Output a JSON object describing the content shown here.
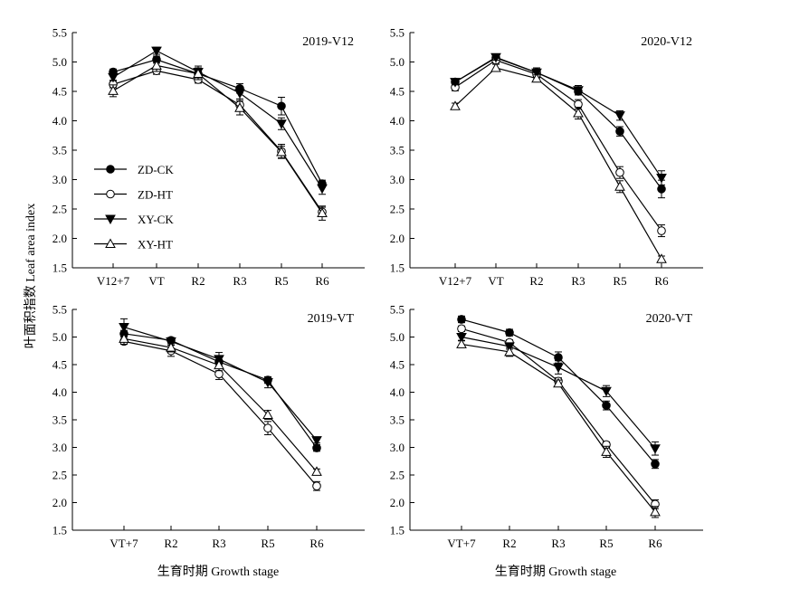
{
  "figure": {
    "ylabel": "叶面积指数 Leaf area index",
    "xlabel": "生育时期 Growth stage",
    "legend": [
      "ZD-CK",
      "ZD-HT",
      "XY-CK",
      "XY-HT"
    ]
  },
  "chart_data": [
    {
      "type": "line",
      "title": "2019-V12",
      "categories": [
        "V12+7",
        "VT",
        "R2",
        "R3",
        "R5",
        "R6"
      ],
      "ylim": [
        1.5,
        5.5
      ],
      "yticks": [
        "1.5",
        "2.0",
        "2.5",
        "3.0",
        "3.5",
        "4.0",
        "4.5",
        "5.0",
        "5.5"
      ],
      "series": [
        {
          "name": "ZD-CK",
          "values": [
            4.83,
            5.04,
            4.8,
            4.55,
            4.25,
            2.93
          ],
          "errors": [
            0.05,
            0.06,
            0.06,
            0.08,
            0.15,
            0.06
          ]
        },
        {
          "name": "ZD-HT",
          "values": [
            4.62,
            4.85,
            4.7,
            4.27,
            3.48,
            2.45
          ],
          "errors": [
            0.06,
            0.06,
            0.06,
            0.1,
            0.12,
            0.08
          ]
        },
        {
          "name": "XY-CK",
          "values": [
            4.74,
            5.19,
            4.83,
            4.47,
            3.95,
            2.85
          ],
          "errors": [
            0.05,
            0.06,
            0.1,
            0.1,
            0.1,
            0.1
          ]
        },
        {
          "name": "XY-HT",
          "values": [
            4.51,
            4.94,
            4.8,
            4.22,
            3.47,
            2.43
          ],
          "errors": [
            0.1,
            0.1,
            0.1,
            0.12,
            0.1,
            0.12
          ]
        }
      ]
    },
    {
      "type": "line",
      "title": "2020-V12",
      "categories": [
        "V12+7",
        "VT",
        "R2",
        "R3",
        "R5",
        "R6"
      ],
      "ylim": [
        1.5,
        5.5
      ],
      "yticks": [
        "1.5",
        "2.0",
        "2.5",
        "3.0",
        "3.5",
        "4.0",
        "4.5",
        "5.0",
        "5.5"
      ],
      "series": [
        {
          "name": "ZD-CK",
          "values": [
            4.66,
            5.07,
            4.82,
            4.5,
            3.82,
            2.84
          ],
          "errors": [
            0.05,
            0.05,
            0.06,
            0.06,
            0.08,
            0.15
          ]
        },
        {
          "name": "ZD-HT",
          "values": [
            4.57,
            5.03,
            4.79,
            4.28,
            3.12,
            2.13
          ],
          "errors": [
            0.06,
            0.05,
            0.06,
            0.08,
            0.1,
            0.1
          ]
        },
        {
          "name": "XY-CK",
          "values": [
            4.66,
            5.08,
            4.82,
            4.52,
            4.09,
            3.03
          ],
          "errors": [
            0.05,
            0.05,
            0.08,
            0.08,
            0.08,
            0.12
          ]
        },
        {
          "name": "XY-HT",
          "values": [
            4.25,
            4.9,
            4.72,
            4.13,
            2.88,
            1.65
          ],
          "errors": [
            0.05,
            0.06,
            0.06,
            0.1,
            0.1,
            0.05
          ]
        }
      ]
    },
    {
      "type": "line",
      "title": "2019-VT",
      "categories": [
        "VT+7",
        "R2",
        "R3",
        "R5",
        "R6"
      ],
      "ylim": [
        1.5,
        5.5
      ],
      "yticks": [
        "1.5",
        "2.0",
        "2.5",
        "3.0",
        "3.5",
        "4.0",
        "4.5",
        "5.0",
        "5.5"
      ],
      "series": [
        {
          "name": "ZD-CK",
          "values": [
            5.06,
            4.94,
            4.55,
            4.22,
            2.99
          ],
          "errors": [
            0.06,
            0.05,
            0.08,
            0.06,
            0.06
          ]
        },
        {
          "name": "ZD-HT",
          "values": [
            4.92,
            4.75,
            4.33,
            3.35,
            2.3
          ],
          "errors": [
            0.05,
            0.1,
            0.1,
            0.12,
            0.08
          ]
        },
        {
          "name": "XY-CK",
          "values": [
            5.18,
            4.92,
            4.6,
            4.18,
            3.13
          ],
          "errors": [
            0.15,
            0.06,
            0.12,
            0.1,
            0.05
          ]
        },
        {
          "name": "XY-HT",
          "values": [
            4.97,
            4.81,
            4.49,
            3.59,
            2.56
          ],
          "errors": [
            0.1,
            0.08,
            0.1,
            0.08,
            0.05
          ]
        }
      ]
    },
    {
      "type": "line",
      "title": "2020-VT",
      "categories": [
        "VT+7",
        "R2",
        "R3",
        "R5",
        "R6"
      ],
      "ylim": [
        1.5,
        5.5
      ],
      "yticks": [
        "1.5",
        "2.0",
        "2.5",
        "3.0",
        "3.5",
        "4.0",
        "4.5",
        "5.0",
        "5.5"
      ],
      "series": [
        {
          "name": "ZD-CK",
          "values": [
            5.32,
            5.08,
            4.63,
            3.76,
            2.7
          ],
          "errors": [
            0.06,
            0.06,
            0.1,
            0.08,
            0.08
          ]
        },
        {
          "name": "ZD-HT",
          "values": [
            5.15,
            4.9,
            4.2,
            3.05,
            1.97
          ],
          "errors": [
            0.05,
            0.05,
            0.06,
            0.05,
            0.08
          ]
        },
        {
          "name": "XY-CK",
          "values": [
            5.0,
            4.83,
            4.45,
            4.02,
            2.98
          ],
          "errors": [
            0.06,
            0.05,
            0.12,
            0.1,
            0.12
          ]
        },
        {
          "name": "XY-HT",
          "values": [
            4.87,
            4.73,
            4.16,
            2.92,
            1.83
          ],
          "errors": [
            0.06,
            0.08,
            0.06,
            0.1,
            0.1
          ]
        }
      ]
    }
  ]
}
